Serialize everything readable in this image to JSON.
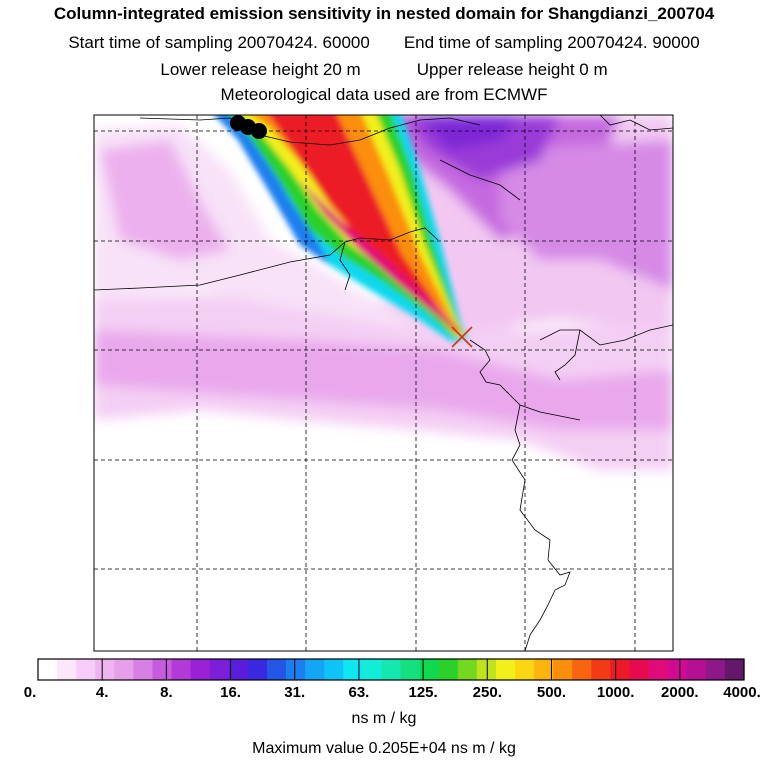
{
  "header": {
    "title": "Column-integrated emission sensitivity in nested domain for Shangdianzi_200704",
    "start_time": "Start time of sampling 20070424. 60000",
    "end_time": "End time of sampling 20070424. 90000",
    "lower_release": "Lower release height   20 m",
    "upper_release": "Upper release height    0 m",
    "met_data": "Meteorological data used are from ECMWF"
  },
  "chart_data": {
    "type": "heatmap",
    "title": "Column-integrated emission sensitivity in nested domain for Shangdianzi_200704",
    "units": "ns m / kg",
    "max_value": 2050,
    "max_value_label": "Maximum value  0.205E+04 ns m / kg",
    "colorbar_ticks": [
      "0.",
      "4.",
      "8.",
      "16.",
      "31.",
      "63.",
      "125.",
      "250.",
      "500.",
      "1000.",
      "2000.",
      "4000."
    ],
    "colorbar_colors": [
      "#ffffff",
      "#fbe6fb",
      "#f6cdf6",
      "#efb3f0",
      "#e6a0ea",
      "#d77fe4",
      "#c65bde",
      "#b23ad8",
      "#9a22d6",
      "#7d1ed8",
      "#5a1ddb",
      "#3a27e0",
      "#2257e6",
      "#1c7ff0",
      "#14a6f5",
      "#0fc3f6",
      "#10e6f2",
      "#12ecd8",
      "#14e8b0",
      "#14e080",
      "#12d850",
      "#2bd12a",
      "#74d821",
      "#c0e31d",
      "#f2ef1b",
      "#fbd612",
      "#fcb50c",
      "#fb8e0b",
      "#f8640f",
      "#f33a16",
      "#ec1a28",
      "#e70a4f",
      "#e10a7a",
      "#d10a92",
      "#b50f93",
      "#8f1889",
      "#63186c"
    ],
    "release_site": "Shangdianzi",
    "marker": "x"
  }
}
